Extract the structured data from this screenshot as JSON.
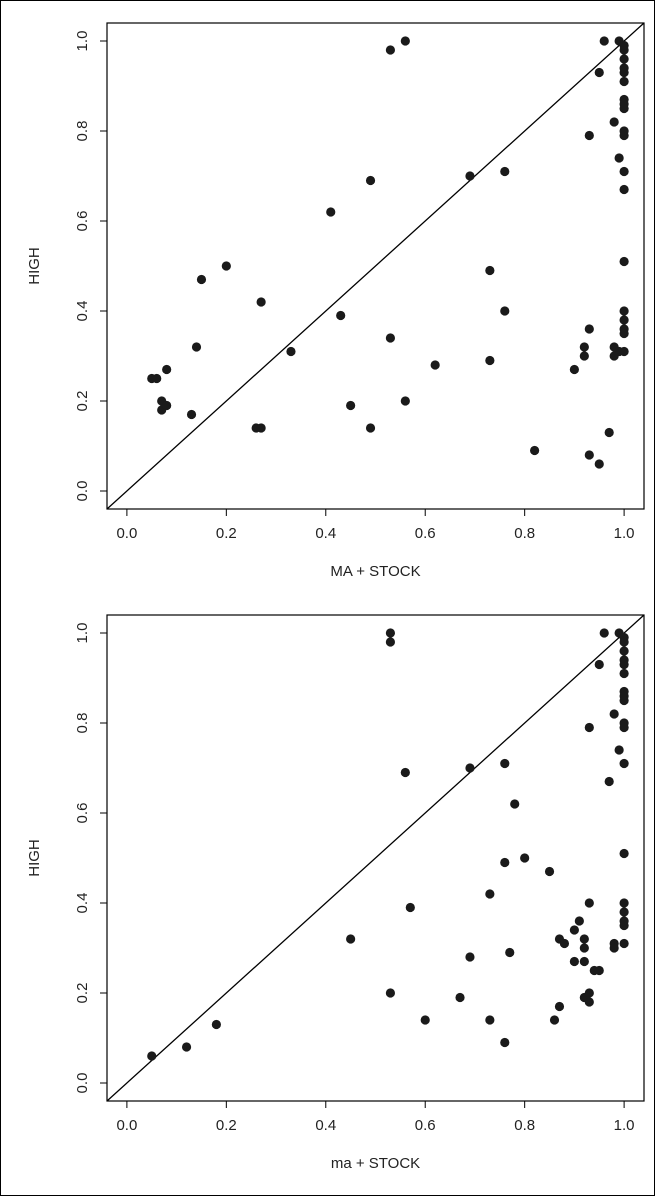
{
  "chart_data": [
    {
      "type": "scatter",
      "title": "",
      "xlabel": "MA + STOCK",
      "ylabel": "HIGH",
      "xlim": [
        -0.04,
        1.04
      ],
      "ylim": [
        -0.04,
        1.04
      ],
      "xticks": [
        "0.0",
        "0.2",
        "0.4",
        "0.6",
        "0.8",
        "1.0"
      ],
      "yticks": [
        "0.0",
        "0.2",
        "0.4",
        "0.6",
        "0.8",
        "1.0"
      ],
      "reference_line": "y = x",
      "grid": false,
      "point_color": "#1a1a1a",
      "series": [
        {
          "points": [
            [
              0.05,
              0.25
            ],
            [
              0.06,
              0.25
            ],
            [
              0.07,
              0.2
            ],
            [
              0.07,
              0.18
            ],
            [
              0.08,
              0.19
            ],
            [
              0.08,
              0.27
            ],
            [
              0.13,
              0.17
            ],
            [
              0.14,
              0.32
            ],
            [
              0.15,
              0.47
            ],
            [
              0.2,
              0.5
            ],
            [
              0.26,
              0.14
            ],
            [
              0.27,
              0.14
            ],
            [
              0.27,
              0.42
            ],
            [
              0.33,
              0.31
            ],
            [
              0.41,
              0.62
            ],
            [
              0.43,
              0.39
            ],
            [
              0.45,
              0.19
            ],
            [
              0.49,
              0.69
            ],
            [
              0.49,
              0.14
            ],
            [
              0.53,
              0.98
            ],
            [
              0.53,
              0.34
            ],
            [
              0.56,
              1.0
            ],
            [
              0.56,
              0.2
            ],
            [
              0.62,
              0.28
            ],
            [
              0.69,
              0.7
            ],
            [
              0.73,
              0.49
            ],
            [
              0.73,
              0.29
            ],
            [
              0.76,
              0.71
            ],
            [
              0.76,
              0.4
            ],
            [
              0.82,
              0.09
            ],
            [
              0.9,
              0.27
            ],
            [
              0.92,
              0.32
            ],
            [
              0.92,
              0.3
            ],
            [
              0.93,
              0.36
            ],
            [
              0.93,
              0.79
            ],
            [
              0.93,
              0.08
            ],
            [
              0.95,
              0.93
            ],
            [
              0.95,
              0.06
            ],
            [
              0.96,
              1.0
            ],
            [
              0.97,
              0.13
            ],
            [
              0.98,
              0.82
            ],
            [
              0.98,
              0.32
            ],
            [
              0.98,
              0.3
            ],
            [
              0.99,
              1.0
            ],
            [
              0.99,
              0.74
            ],
            [
              0.99,
              0.31
            ],
            [
              1.0,
              0.99
            ],
            [
              1.0,
              0.98
            ],
            [
              1.0,
              0.96
            ],
            [
              1.0,
              0.94
            ],
            [
              1.0,
              0.93
            ],
            [
              1.0,
              0.91
            ],
            [
              1.0,
              0.87
            ],
            [
              1.0,
              0.86
            ],
            [
              1.0,
              0.85
            ],
            [
              1.0,
              0.8
            ],
            [
              1.0,
              0.79
            ],
            [
              1.0,
              0.71
            ],
            [
              1.0,
              0.67
            ],
            [
              1.0,
              0.51
            ],
            [
              1.0,
              0.4
            ],
            [
              1.0,
              0.38
            ],
            [
              1.0,
              0.36
            ],
            [
              1.0,
              0.35
            ],
            [
              1.0,
              0.31
            ]
          ]
        }
      ]
    },
    {
      "type": "scatter",
      "title": "",
      "xlabel": "ma + STOCK",
      "ylabel": "HIGH",
      "xlim": [
        -0.04,
        1.04
      ],
      "ylim": [
        -0.04,
        1.04
      ],
      "xticks": [
        "0.0",
        "0.2",
        "0.4",
        "0.6",
        "0.8",
        "1.0"
      ],
      "yticks": [
        "0.0",
        "0.2",
        "0.4",
        "0.6",
        "0.8",
        "1.0"
      ],
      "reference_line": "y = x",
      "grid": false,
      "point_color": "#1a1a1a",
      "series": [
        {
          "points": [
            [
              0.05,
              0.06
            ],
            [
              0.12,
              0.08
            ],
            [
              0.18,
              0.13
            ],
            [
              0.45,
              0.32
            ],
            [
              0.53,
              1.0
            ],
            [
              0.53,
              0.98
            ],
            [
              0.53,
              0.2
            ],
            [
              0.56,
              0.69
            ],
            [
              0.57,
              0.39
            ],
            [
              0.6,
              0.14
            ],
            [
              0.67,
              0.19
            ],
            [
              0.69,
              0.7
            ],
            [
              0.69,
              0.28
            ],
            [
              0.73,
              0.42
            ],
            [
              0.73,
              0.14
            ],
            [
              0.76,
              0.71
            ],
            [
              0.76,
              0.49
            ],
            [
              0.76,
              0.09
            ],
            [
              0.77,
              0.29
            ],
            [
              0.78,
              0.62
            ],
            [
              0.8,
              0.5
            ],
            [
              0.85,
              0.47
            ],
            [
              0.86,
              0.14
            ],
            [
              0.87,
              0.17
            ],
            [
              0.87,
              0.32
            ],
            [
              0.88,
              0.31
            ],
            [
              0.9,
              0.34
            ],
            [
              0.9,
              0.27
            ],
            [
              0.91,
              0.36
            ],
            [
              0.92,
              0.32
            ],
            [
              0.92,
              0.3
            ],
            [
              0.92,
              0.27
            ],
            [
              0.92,
              0.19
            ],
            [
              0.93,
              0.18
            ],
            [
              0.93,
              0.2
            ],
            [
              0.93,
              0.4
            ],
            [
              0.93,
              0.79
            ],
            [
              0.94,
              0.25
            ],
            [
              0.95,
              0.25
            ],
            [
              0.95,
              0.93
            ],
            [
              0.96,
              1.0
            ],
            [
              0.97,
              0.67
            ],
            [
              0.98,
              0.82
            ],
            [
              0.98,
              0.31
            ],
            [
              0.98,
              0.3
            ],
            [
              0.99,
              1.0
            ],
            [
              0.99,
              0.74
            ],
            [
              1.0,
              0.99
            ],
            [
              1.0,
              0.98
            ],
            [
              1.0,
              0.96
            ],
            [
              1.0,
              0.94
            ],
            [
              1.0,
              0.93
            ],
            [
              1.0,
              0.91
            ],
            [
              1.0,
              0.87
            ],
            [
              1.0,
              0.86
            ],
            [
              1.0,
              0.85
            ],
            [
              1.0,
              0.8
            ],
            [
              1.0,
              0.79
            ],
            [
              1.0,
              0.71
            ],
            [
              1.0,
              0.51
            ],
            [
              1.0,
              0.4
            ],
            [
              1.0,
              0.38
            ],
            [
              1.0,
              0.36
            ],
            [
              1.0,
              0.35
            ],
            [
              1.0,
              0.31
            ]
          ]
        }
      ]
    }
  ]
}
